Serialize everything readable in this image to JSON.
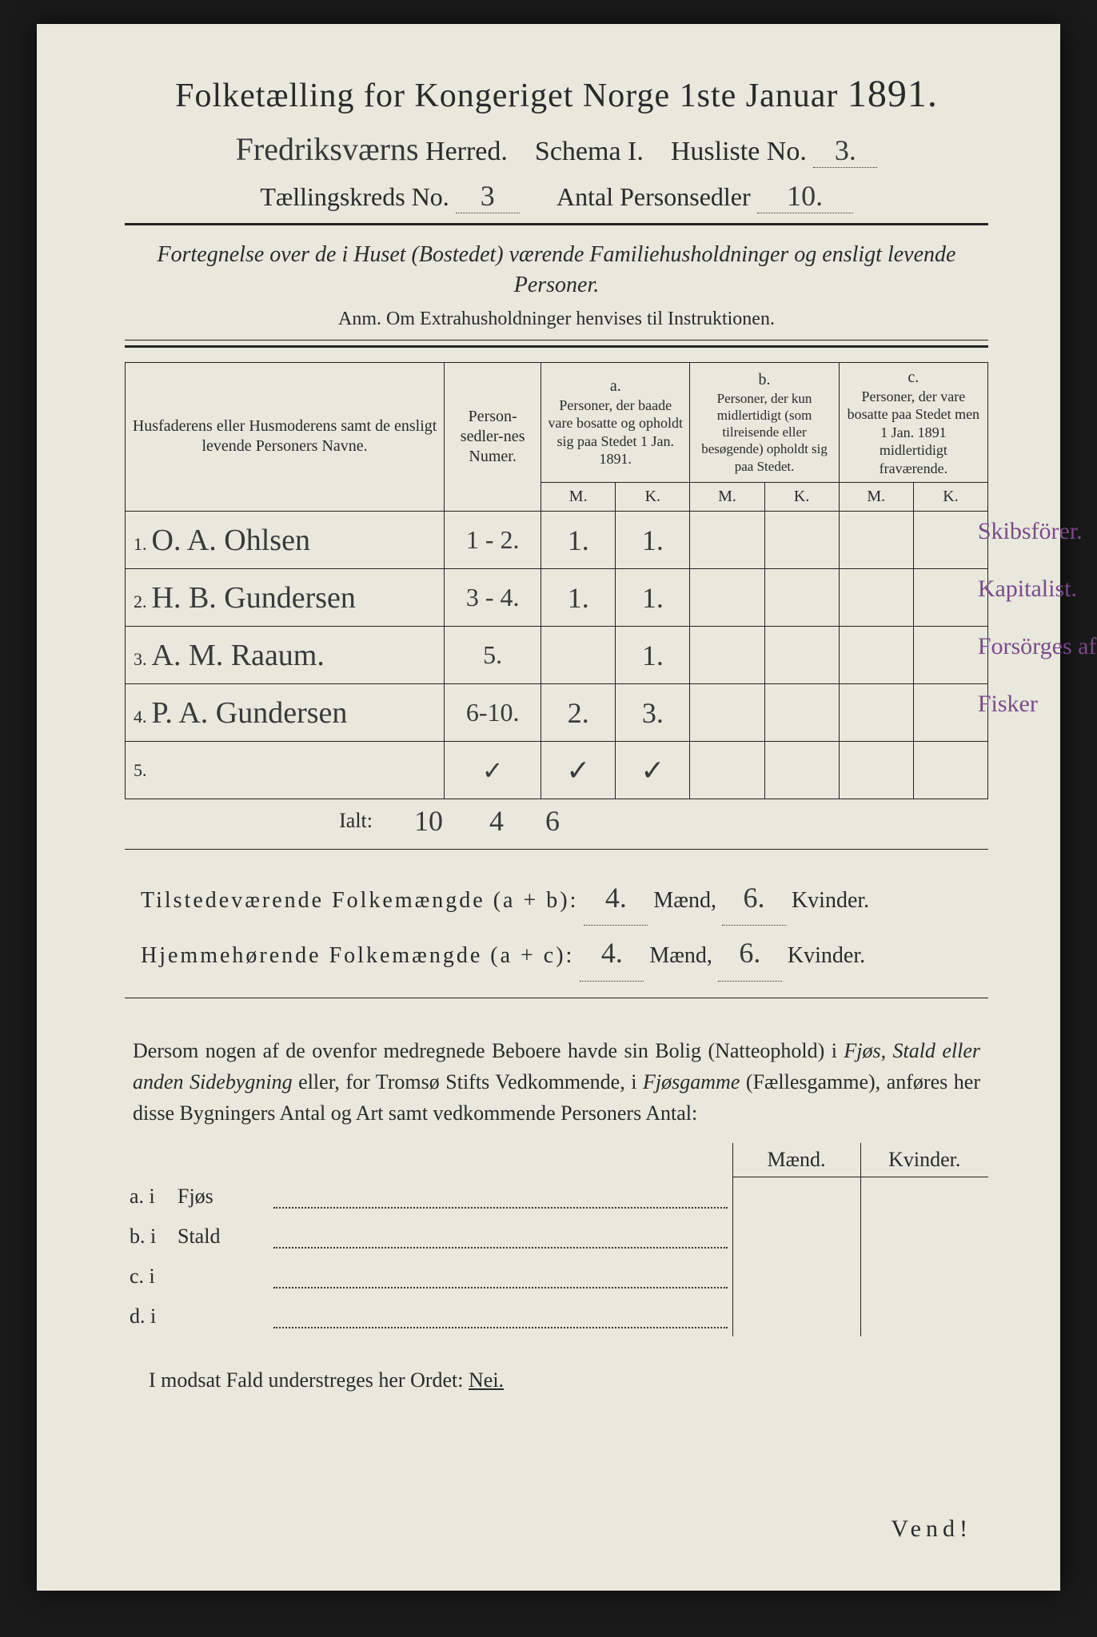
{
  "header": {
    "title_prefix": "Folketælling for Kongeriget Norge 1ste Januar",
    "year": "1891.",
    "herred_handwritten": "Fredriksværns",
    "herred_label": "Herred.",
    "schema_label": "Schema I.",
    "husliste_label": "Husliste No.",
    "husliste_no": "3.",
    "kreds_label": "Tællingskreds No.",
    "kreds_no": "3",
    "antal_label": "Antal Personsedler",
    "antal_val": "10.",
    "fortegnelse": "Fortegnelse over de i Huset (Bostedet) værende Familiehusholdninger og ensligt levende Personer.",
    "anm": "Anm. Om Extrahusholdninger henvises til Instruktionen."
  },
  "table": {
    "col_name": "Husfaderens eller Husmoderens samt de ensligt levende Personers Navne.",
    "col_num": "Person-sedler-nes Numer.",
    "col_a_top": "a.",
    "col_a": "Personer, der baade vare bosatte og opholdt sig paa Stedet 1 Jan. 1891.",
    "col_b_top": "b.",
    "col_b": "Personer, der kun midlertidigt (som tilreisende eller besøgende) opholdt sig paa Stedet.",
    "col_c_top": "c.",
    "col_c": "Personer, der vare bosatte paa Stedet men 1 Jan. 1891 midlertidigt fraværende.",
    "m": "M.",
    "k": "K.",
    "rows": [
      {
        "n": "1.",
        "name": "O. A. Ohlsen",
        "num": "1 - 2.",
        "am": "1.",
        "ak": "1.",
        "bm": "",
        "bk": "",
        "cm": "",
        "ck": "",
        "note": "Skibsförer."
      },
      {
        "n": "2.",
        "name": "H. B. Gundersen",
        "num": "3 - 4.",
        "am": "1.",
        "ak": "1.",
        "bm": "",
        "bk": "",
        "cm": "",
        "ck": "",
        "note": "Kapitalist."
      },
      {
        "n": "3.",
        "name": "A. M. Raaum.",
        "num": "5.",
        "am": "",
        "ak": "1.",
        "bm": "",
        "bk": "",
        "cm": "",
        "ck": "",
        "note": "Forsörges af Postbetjente."
      },
      {
        "n": "4.",
        "name": "P. A. Gundersen",
        "num": "6-10.",
        "am": "2.",
        "ak": "3.",
        "bm": "",
        "bk": "",
        "cm": "",
        "ck": "",
        "note": "Fisker"
      },
      {
        "n": "5.",
        "name": "",
        "num": "✓",
        "am": "✓",
        "ak": "✓",
        "bm": "",
        "bk": "",
        "cm": "",
        "ck": "",
        "note": ""
      }
    ],
    "ialt_label": "Ialt:",
    "ialt_num": "10",
    "ialt_am": "4",
    "ialt_ak": "6"
  },
  "summary": {
    "line1_label": "Tilstedeværende Folkemængde (a + b):",
    "line2_label": "Hjemmehørende Folkemængde (a + c):",
    "maend": "Mænd,",
    "kvinder": "Kvinder.",
    "v1m": "4.",
    "v1k": "6.",
    "v2m": "4.",
    "v2k": "6."
  },
  "paragraph": {
    "text1": "Dersom nogen af de ovenfor medregnede Beboere havde sin Bolig (Natteophold) i ",
    "em1": "Fjøs, Stald eller anden Sidebygning",
    "text2": " eller, for Tromsø Stifts Vedkommende, i ",
    "em2": "Fjøsgamme",
    "text3": " (Fællesgamme), anføres her disse Bygningers Antal og Art samt vedkommende Personers Antal:"
  },
  "outbuildings": {
    "maend": "Mænd.",
    "kvinder": "Kvinder.",
    "rows": [
      {
        "lbl": "a.  i",
        "type": "Fjøs"
      },
      {
        "lbl": "b.  i",
        "type": "Stald"
      },
      {
        "lbl": "c.  i",
        "type": ""
      },
      {
        "lbl": "d.  i",
        "type": ""
      }
    ]
  },
  "footer": {
    "modsat": "I modsat Fald understreges her Ordet:",
    "nej": "Nei.",
    "vend": "Vend!"
  },
  "style": {
    "paper_bg": "#e8e8dc",
    "ink": "#2a2a2a",
    "hand_purple": "#7a4a8a"
  }
}
